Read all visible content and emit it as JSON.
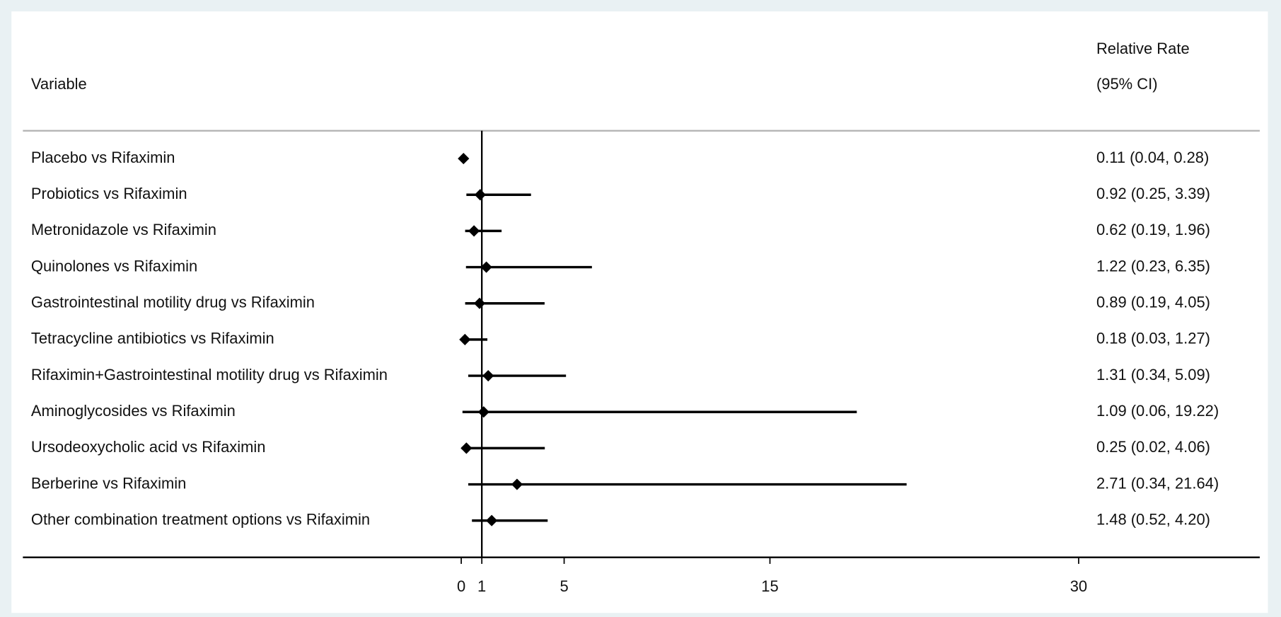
{
  "chart_data": {
    "type": "forest",
    "label_header": "Variable",
    "value_header": [
      "Relative Rate",
      "(95% CI)"
    ],
    "categories": [
      "Placebo vs Rifaximin",
      "Probiotics vs Rifaximin",
      "Metronidazole vs Rifaximin",
      "Quinolones vs Rifaximin",
      "Gastrointestinal motility drug vs Rifaximin",
      "Tetracycline antibiotics vs Rifaximin",
      "Rifaximin+Gastrointestinal motility drug vs Rifaximin",
      "Aminoglycosides vs Rifaximin",
      "Ursodeoxycholic acid vs Rifaximin",
      "Berberine vs Rifaximin",
      "Other combination treatment options vs Rifaximin"
    ],
    "values": [
      0.11,
      0.92,
      0.62,
      1.22,
      0.89,
      0.18,
      1.31,
      1.09,
      0.25,
      2.71,
      1.48
    ],
    "lower": [
      0.04,
      0.25,
      0.19,
      0.23,
      0.19,
      0.03,
      0.34,
      0.06,
      0.02,
      0.34,
      0.52
    ],
    "upper": [
      0.28,
      3.39,
      1.96,
      6.35,
      4.05,
      1.27,
      5.09,
      19.22,
      4.06,
      21.64,
      4.2
    ],
    "value_labels": [
      "0.11 (0.04, 0.28)",
      "0.92 (0.25, 3.39)",
      "0.62 (0.19, 1.96)",
      "1.22 (0.23, 6.35)",
      "0.89 (0.19, 4.05)",
      "0.18 (0.03, 1.27)",
      "1.31 (0.34, 5.09)",
      "1.09 (0.06, 19.22)",
      "0.25 (0.02, 4.06)",
      "2.71 (0.34, 21.64)",
      "1.48 (0.52, 4.20)"
    ],
    "color": "#000000",
    "reference_line": 1,
    "xlim": [
      -21.3,
      38.8
    ],
    "xticks": [
      0,
      1,
      5,
      15,
      30
    ]
  }
}
